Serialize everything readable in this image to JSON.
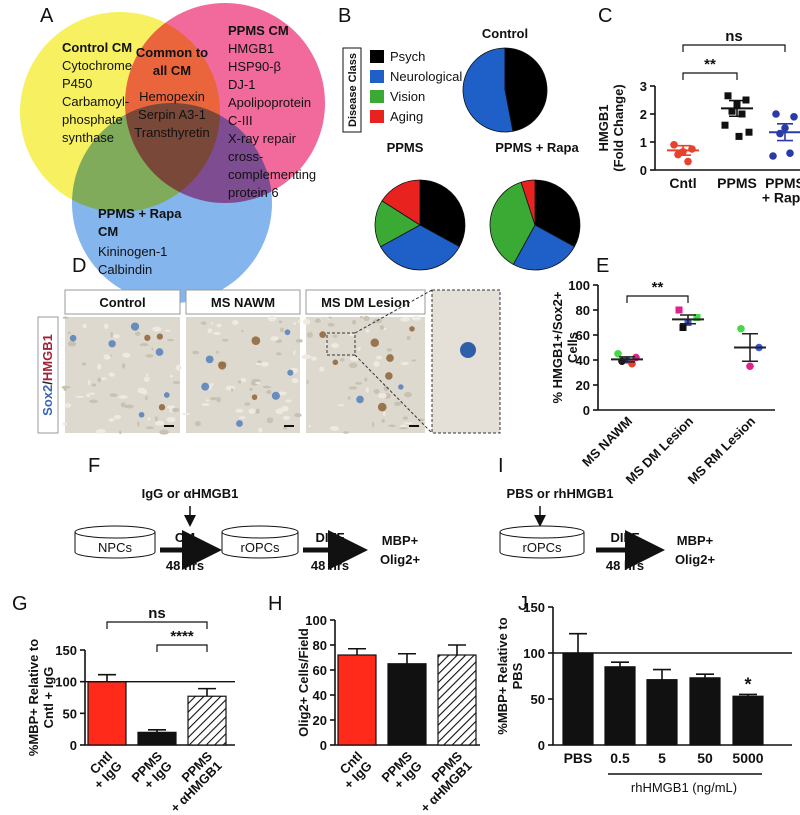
{
  "panels": {
    "letters": [
      "A",
      "B",
      "C",
      "D",
      "E",
      "F",
      "G",
      "H",
      "I",
      "J"
    ]
  },
  "venn": {
    "sets": [
      {
        "name": [
          "Control CM"
        ],
        "items": [
          "Cytochrome",
          "P450",
          "Carbamoyl-",
          "phosphate",
          "synthase"
        ],
        "color": "#f6ee45"
      },
      {
        "name": [
          "PPMS CM"
        ],
        "items": [
          "HMGB1",
          "HSP90-β",
          "DJ-1",
          "Apolipoprotein",
          "C-III",
          "X-ray repair",
          "cross-",
          "complementing",
          "protein 6"
        ],
        "color": "#f0508a"
      },
      {
        "name": [
          "PPMS + Rapa",
          "CM"
        ],
        "items": [
          "Kininogen-1",
          "Calbindin"
        ],
        "color": "#6fa8ea"
      }
    ],
    "common": {
      "name": [
        "Common to",
        "all CM"
      ],
      "items": [
        "Hemopexin",
        "Serpin A3-1",
        "Transthyretin"
      ]
    }
  },
  "micrographs": {
    "stain": [
      "Sox2",
      "/",
      "HMGB1"
    ],
    "stain_colors": [
      "#3a64b4",
      "#222222",
      "#a0243a"
    ],
    "titles": [
      "Control",
      "MS NAWM",
      "MS DM Lesion"
    ]
  },
  "diagram_f": {
    "treatment": "IgG or αHMGB1",
    "source": "NPCs",
    "step_1": "CM",
    "time_1": "48 hrs",
    "target": "rOPCs",
    "step_2": "DIFF",
    "time_2": "48 hrs",
    "readout": [
      "MBP+",
      "Olig2+"
    ]
  },
  "diagram_i": {
    "treatment": "PBS or rhHMGB1",
    "target": "rOPCs",
    "step": "DIFF",
    "time": "48 hrs",
    "readout": [
      "MBP+",
      "Olig2+"
    ]
  },
  "chart_data": [
    {
      "type": "pie",
      "legend_title": "Disease Class",
      "categories": [
        "Psych",
        "Neurological",
        "Vision",
        "Aging"
      ],
      "colors": [
        "#000000",
        "#1f5fc8",
        "#3aaa35",
        "#e8231f"
      ],
      "series": [
        {
          "name": "Control",
          "values": [
            47,
            53,
            0,
            0
          ]
        },
        {
          "name": "PPMS",
          "values": [
            33,
            34,
            17,
            16
          ]
        },
        {
          "name": "PPMS + Rapa",
          "values": [
            33,
            25,
            37,
            5
          ]
        }
      ]
    },
    {
      "type": "dot",
      "ylabel": [
        "HMGB1",
        "(Fold Change)"
      ],
      "categories": [
        [
          "Cntl"
        ],
        [
          "PPMS"
        ],
        [
          "PPMS",
          "+ Rapa"
        ]
      ],
      "points": [
        [
          0.9,
          0.75,
          0.65,
          0.55,
          0.3
        ],
        [
          2.65,
          2.5,
          2.35,
          2.1,
          2.0,
          1.6,
          1.35,
          1.2
        ],
        [
          2.0,
          1.9,
          1.5,
          1.3,
          0.6,
          0.5
        ]
      ],
      "means": [
        0.7,
        2.2,
        1.35
      ],
      "errors": [
        0.17,
        0.28,
        0.3
      ],
      "colors": [
        "#e8412c",
        "#111111",
        "#2a3ba8"
      ],
      "markers": [
        "circle",
        "square",
        "circle"
      ],
      "ylim": [
        0,
        3
      ],
      "yticks": [
        0,
        1,
        2,
        3
      ],
      "significance": [
        "**",
        "ns"
      ]
    },
    {
      "type": "dot",
      "ylabel": [
        "% HMGB1+/Sox2+",
        "Cells"
      ],
      "categories": [
        [
          "MS NAWM"
        ],
        [
          "MS DM Lesion"
        ],
        [
          "MS RM Lesion"
        ]
      ],
      "points": [
        [
          45,
          42,
          40,
          39,
          37
        ],
        [
          80,
          74,
          70,
          66
        ],
        [
          65,
          50,
          35
        ]
      ],
      "point_colors": [
        [
          "#46d84a",
          "#e0208c",
          "#3a5bd8",
          "#111111",
          "#e8412c"
        ],
        [
          "#e0208c",
          "#46d84a",
          "#3a5bd8",
          "#111111"
        ],
        [
          "#46d84a",
          "#3a5bd8",
          "#e0208c"
        ]
      ],
      "markers": [
        "circle",
        "square",
        "circle"
      ],
      "means": [
        40.5,
        72.5,
        50
      ],
      "errors": [
        2,
        3.5,
        11
      ],
      "mean_color": "#222222",
      "ylim": [
        0,
        100
      ],
      "yticks": [
        0,
        20,
        40,
        60,
        80,
        100
      ],
      "significance": [
        "**"
      ]
    },
    {
      "type": "bar",
      "ylabel": [
        "%MBP+ Relative to",
        "Cntl + IgG"
      ],
      "categories": [
        [
          "Cntl",
          "+ IgG"
        ],
        [
          "PPMS",
          "+ IgG"
        ],
        [
          "PPMS",
          "+ αHMGB1"
        ]
      ],
      "values": [
        100,
        20,
        77
      ],
      "errors": [
        11,
        4,
        12
      ],
      "fills": [
        "#ff2a1a",
        "#111111",
        "hatched"
      ],
      "reference_line": 100,
      "ylim": [
        0,
        150
      ],
      "yticks": [
        0,
        50,
        100,
        150
      ],
      "significance": [
        "ns",
        "****"
      ]
    },
    {
      "type": "bar",
      "ylabel": [
        "Olig2+ Cells/Field"
      ],
      "categories": [
        [
          "Cntl",
          "+ IgG"
        ],
        [
          "PPMS",
          "+ IgG"
        ],
        [
          "PPMS",
          "+ αHMGB1"
        ]
      ],
      "values": [
        72,
        65,
        72
      ],
      "errors": [
        5,
        8,
        8
      ],
      "fills": [
        "#ff2a1a",
        "#111111",
        "hatched"
      ],
      "ylim": [
        0,
        100
      ],
      "yticks": [
        0,
        20,
        40,
        60,
        80,
        100
      ]
    },
    {
      "type": "bar",
      "ylabel": [
        "%MBP+ Relative to",
        "PBS"
      ],
      "categories": [
        [
          "PBS"
        ],
        [
          "0.5"
        ],
        [
          "5"
        ],
        [
          "50"
        ],
        [
          "5000"
        ]
      ],
      "xlabel": "rhHMGB1 (ng/mL)",
      "values": [
        100,
        85,
        71,
        73,
        53
      ],
      "errors": [
        21,
        5,
        11,
        4,
        2
      ],
      "fills": [
        "#111111",
        "#111111",
        "#111111",
        "#111111",
        "#111111"
      ],
      "reference_line": 100,
      "ylim": [
        0,
        150
      ],
      "yticks": [
        0,
        50,
        100,
        150
      ],
      "significance": [
        "*"
      ]
    }
  ]
}
